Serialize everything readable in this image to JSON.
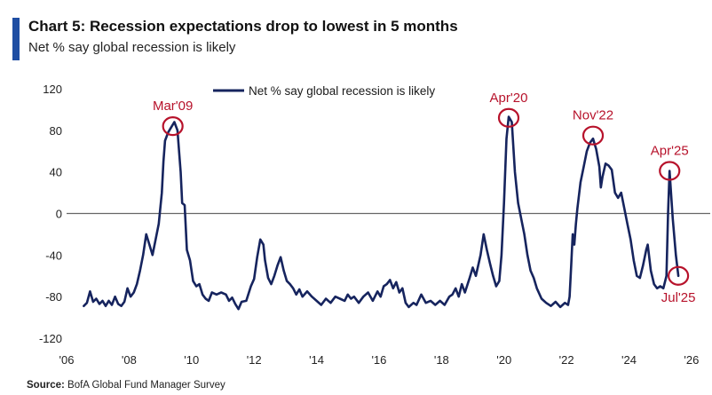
{
  "header": {
    "title": "Chart 5: Recession expectations drop to lowest in 5 months",
    "subtitle": "Net % say global recession is likely"
  },
  "footer": {
    "source_label": "Source:",
    "source_text": "BofA Global Fund Manager Survey"
  },
  "colors": {
    "accent": "#1f4ea3",
    "line": "#16245e",
    "annotation": "#b7122b",
    "zero_line": "#666666"
  },
  "chart_data": {
    "type": "line",
    "title": "Chart 5: Recession expectations drop to lowest in 5 months",
    "subtitle": "Net % say global recession is likely",
    "xlabel": "",
    "ylabel": "",
    "xlim": [
      2006,
      2026.6
    ],
    "ylim": [
      -120,
      120
    ],
    "x_ticks": [
      {
        "value": 2006,
        "label": "'06"
      },
      {
        "value": 2008,
        "label": "'08"
      },
      {
        "value": 2010,
        "label": "'10"
      },
      {
        "value": 2012,
        "label": "'12"
      },
      {
        "value": 2014,
        "label": "'14"
      },
      {
        "value": 2016,
        "label": "'16"
      },
      {
        "value": 2018,
        "label": "'18"
      },
      {
        "value": 2020,
        "label": "'20"
      },
      {
        "value": 2022,
        "label": "'22"
      },
      {
        "value": 2024,
        "label": "'24"
      },
      {
        "value": 2026,
        "label": "'26"
      }
    ],
    "y_ticks": [
      120,
      80,
      40,
      0,
      -40,
      -80,
      -120
    ],
    "grid": false,
    "zero_line": true,
    "legend_position": "top-center",
    "series": [
      {
        "name": "Net % say global recession is likely",
        "points": [
          [
            2006.55,
            -89
          ],
          [
            2006.65,
            -86
          ],
          [
            2006.75,
            -75
          ],
          [
            2006.85,
            -85
          ],
          [
            2006.95,
            -82
          ],
          [
            2007.05,
            -87
          ],
          [
            2007.15,
            -84
          ],
          [
            2007.25,
            -89
          ],
          [
            2007.35,
            -84
          ],
          [
            2007.45,
            -88
          ],
          [
            2007.55,
            -80
          ],
          [
            2007.65,
            -87
          ],
          [
            2007.75,
            -89
          ],
          [
            2007.85,
            -85
          ],
          [
            2007.95,
            -72
          ],
          [
            2008.05,
            -80
          ],
          [
            2008.15,
            -76
          ],
          [
            2008.25,
            -68
          ],
          [
            2008.35,
            -55
          ],
          [
            2008.45,
            -40
          ],
          [
            2008.55,
            -20
          ],
          [
            2008.65,
            -30
          ],
          [
            2008.75,
            -40
          ],
          [
            2008.85,
            -25
          ],
          [
            2008.95,
            -10
          ],
          [
            2009.05,
            20
          ],
          [
            2009.1,
            50
          ],
          [
            2009.15,
            70
          ],
          [
            2009.25,
            78
          ],
          [
            2009.35,
            83
          ],
          [
            2009.45,
            88
          ],
          [
            2009.55,
            80
          ],
          [
            2009.65,
            40
          ],
          [
            2009.7,
            10
          ],
          [
            2009.78,
            8
          ],
          [
            2009.85,
            -35
          ],
          [
            2009.95,
            -45
          ],
          [
            2010.05,
            -65
          ],
          [
            2010.15,
            -70
          ],
          [
            2010.25,
            -68
          ],
          [
            2010.35,
            -78
          ],
          [
            2010.45,
            -82
          ],
          [
            2010.55,
            -84
          ],
          [
            2010.65,
            -76
          ],
          [
            2010.8,
            -78
          ],
          [
            2010.95,
            -76
          ],
          [
            2011.1,
            -78
          ],
          [
            2011.2,
            -84
          ],
          [
            2011.3,
            -81
          ],
          [
            2011.4,
            -87
          ],
          [
            2011.5,
            -92
          ],
          [
            2011.6,
            -85
          ],
          [
            2011.75,
            -84
          ],
          [
            2011.9,
            -70
          ],
          [
            2012.0,
            -63
          ],
          [
            2012.1,
            -42
          ],
          [
            2012.2,
            -25
          ],
          [
            2012.3,
            -30
          ],
          [
            2012.35,
            -45
          ],
          [
            2012.45,
            -62
          ],
          [
            2012.55,
            -68
          ],
          [
            2012.65,
            -60
          ],
          [
            2012.75,
            -50
          ],
          [
            2012.85,
            -42
          ],
          [
            2012.95,
            -55
          ],
          [
            2013.05,
            -65
          ],
          [
            2013.15,
            -68
          ],
          [
            2013.25,
            -72
          ],
          [
            2013.35,
            -78
          ],
          [
            2013.45,
            -73
          ],
          [
            2013.55,
            -80
          ],
          [
            2013.7,
            -75
          ],
          [
            2013.85,
            -80
          ],
          [
            2014.0,
            -84
          ],
          [
            2014.15,
            -88
          ],
          [
            2014.3,
            -82
          ],
          [
            2014.45,
            -86
          ],
          [
            2014.6,
            -80
          ],
          [
            2014.75,
            -82
          ],
          [
            2014.9,
            -84
          ],
          [
            2015.0,
            -78
          ],
          [
            2015.1,
            -82
          ],
          [
            2015.2,
            -80
          ],
          [
            2015.35,
            -86
          ],
          [
            2015.5,
            -80
          ],
          [
            2015.65,
            -76
          ],
          [
            2015.8,
            -84
          ],
          [
            2015.95,
            -75
          ],
          [
            2016.05,
            -80
          ],
          [
            2016.15,
            -70
          ],
          [
            2016.25,
            -68
          ],
          [
            2016.35,
            -64
          ],
          [
            2016.45,
            -72
          ],
          [
            2016.55,
            -66
          ],
          [
            2016.65,
            -76
          ],
          [
            2016.75,
            -72
          ],
          [
            2016.85,
            -86
          ],
          [
            2016.95,
            -90
          ],
          [
            2017.1,
            -86
          ],
          [
            2017.2,
            -88
          ],
          [
            2017.35,
            -78
          ],
          [
            2017.5,
            -86
          ],
          [
            2017.65,
            -84
          ],
          [
            2017.8,
            -88
          ],
          [
            2017.95,
            -84
          ],
          [
            2018.1,
            -88
          ],
          [
            2018.25,
            -80
          ],
          [
            2018.35,
            -78
          ],
          [
            2018.45,
            -72
          ],
          [
            2018.55,
            -80
          ],
          [
            2018.65,
            -68
          ],
          [
            2018.75,
            -76
          ],
          [
            2018.9,
            -62
          ],
          [
            2019.0,
            -52
          ],
          [
            2019.1,
            -60
          ],
          [
            2019.25,
            -40
          ],
          [
            2019.35,
            -20
          ],
          [
            2019.45,
            -35
          ],
          [
            2019.55,
            -48
          ],
          [
            2019.65,
            -60
          ],
          [
            2019.75,
            -70
          ],
          [
            2019.85,
            -65
          ],
          [
            2019.92,
            -40
          ],
          [
            2020.0,
            10
          ],
          [
            2020.08,
            72
          ],
          [
            2020.15,
            93
          ],
          [
            2020.25,
            88
          ],
          [
            2020.35,
            40
          ],
          [
            2020.45,
            10
          ],
          [
            2020.55,
            -5
          ],
          [
            2020.65,
            -20
          ],
          [
            2020.75,
            -40
          ],
          [
            2020.85,
            -55
          ],
          [
            2020.95,
            -62
          ],
          [
            2021.05,
            -72
          ],
          [
            2021.2,
            -82
          ],
          [
            2021.35,
            -86
          ],
          [
            2021.5,
            -89
          ],
          [
            2021.65,
            -85
          ],
          [
            2021.8,
            -90
          ],
          [
            2021.95,
            -86
          ],
          [
            2022.05,
            -88
          ],
          [
            2022.1,
            -80
          ],
          [
            2022.15,
            -50
          ],
          [
            2022.2,
            -20
          ],
          [
            2022.25,
            -30
          ],
          [
            2022.3,
            -10
          ],
          [
            2022.35,
            5
          ],
          [
            2022.45,
            30
          ],
          [
            2022.55,
            45
          ],
          [
            2022.65,
            60
          ],
          [
            2022.75,
            68
          ],
          [
            2022.85,
            72
          ],
          [
            2022.95,
            62
          ],
          [
            2023.05,
            45
          ],
          [
            2023.1,
            25
          ],
          [
            2023.15,
            35
          ],
          [
            2023.25,
            48
          ],
          [
            2023.35,
            46
          ],
          [
            2023.45,
            42
          ],
          [
            2023.55,
            20
          ],
          [
            2023.65,
            15
          ],
          [
            2023.75,
            20
          ],
          [
            2023.85,
            5
          ],
          [
            2023.95,
            -10
          ],
          [
            2024.05,
            -25
          ],
          [
            2024.15,
            -45
          ],
          [
            2024.25,
            -60
          ],
          [
            2024.35,
            -62
          ],
          [
            2024.45,
            -50
          ],
          [
            2024.55,
            -35
          ],
          [
            2024.6,
            -30
          ],
          [
            2024.7,
            -55
          ],
          [
            2024.8,
            -68
          ],
          [
            2024.9,
            -72
          ],
          [
            2025.0,
            -70
          ],
          [
            2025.1,
            -72
          ],
          [
            2025.2,
            -60
          ],
          [
            2025.25,
            0
          ],
          [
            2025.3,
            41
          ],
          [
            2025.4,
            -5
          ],
          [
            2025.5,
            -40
          ],
          [
            2025.58,
            -60
          ]
        ]
      }
    ],
    "annotations": [
      {
        "label": "Mar'09",
        "x": 2009.4,
        "y": 84
      },
      {
        "label": "Apr'20",
        "x": 2020.15,
        "y": 92
      },
      {
        "label": "Nov'22",
        "x": 2022.85,
        "y": 75
      },
      {
        "label": "Apr'25",
        "x": 2025.3,
        "y": 41
      },
      {
        "label": "Jul'25",
        "x": 2025.58,
        "y": -60
      }
    ]
  }
}
